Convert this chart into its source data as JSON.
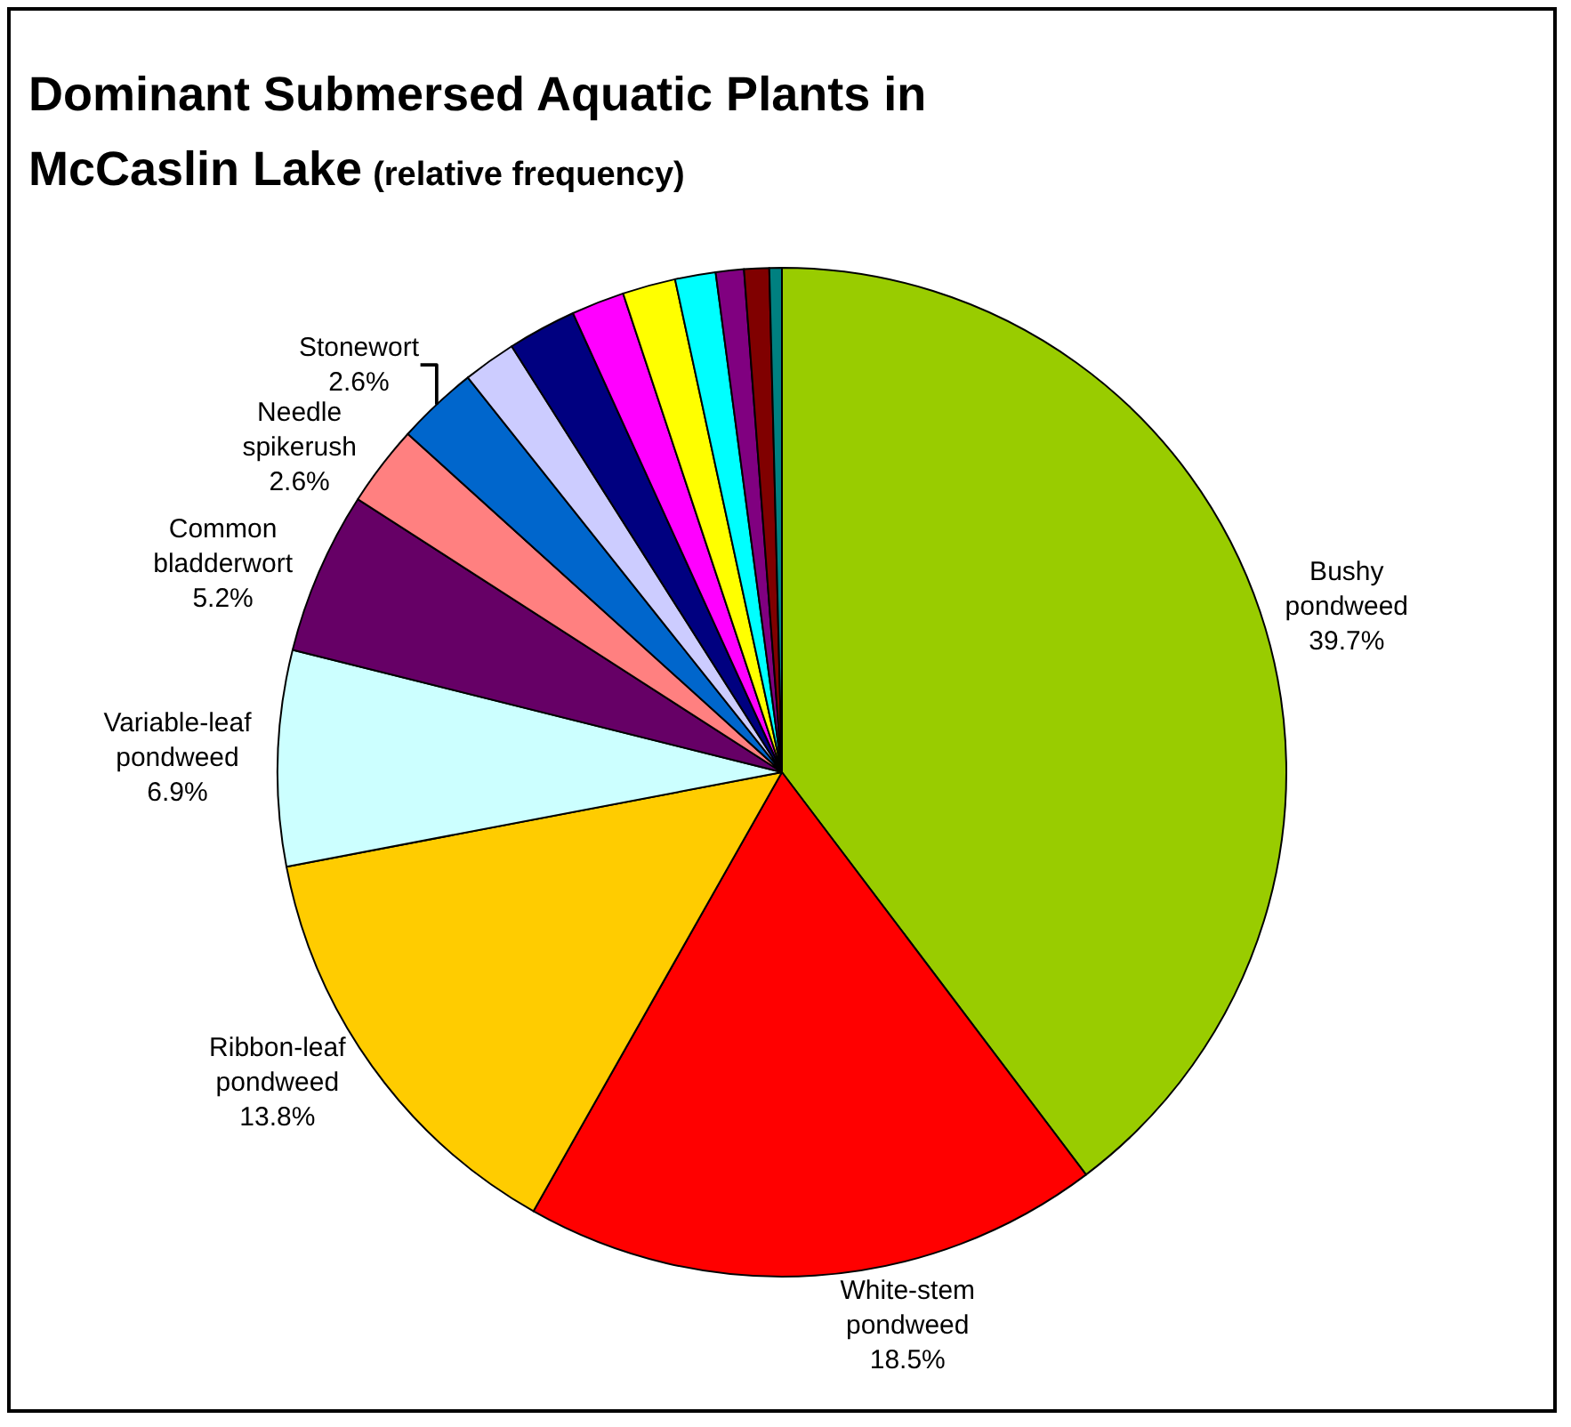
{
  "chart_data": {
    "type": "pie",
    "title": "Dominant Submersed Aquatic Plants in McCaslin Lake",
    "subtitle": "(relative frequency)",
    "categories": [
      "Bushy pondweed",
      "White-stem pondweed",
      "Ribbon-leaf pondweed",
      "Variable-leaf pondweed",
      "Common bladderwort",
      "Needle spikerush",
      "Stonewort",
      null,
      null,
      null,
      null,
      null,
      null,
      null,
      null
    ],
    "values": [
      39.7,
      18.5,
      13.8,
      6.9,
      5.2,
      2.6,
      2.6,
      1.7,
      2.2,
      1.7,
      1.7,
      1.3,
      0.9,
      0.8,
      0.4
    ],
    "value_labels": [
      "39.7%",
      "18.5%",
      "13.8%",
      "6.9%",
      "5.2%",
      "2.6%",
      "2.6%",
      null,
      null,
      null,
      null,
      null,
      null,
      null,
      null
    ],
    "colors": [
      "#99cc00",
      "#ff0000",
      "#ffcc00",
      "#ccffff",
      "#660066",
      "#ff8080",
      "#0066cc",
      "#ccccff",
      "#000080",
      "#ff00ff",
      "#ffff00",
      "#00ffff",
      "#800080",
      "#800000",
      "#008080"
    ],
    "legend": false
  }
}
